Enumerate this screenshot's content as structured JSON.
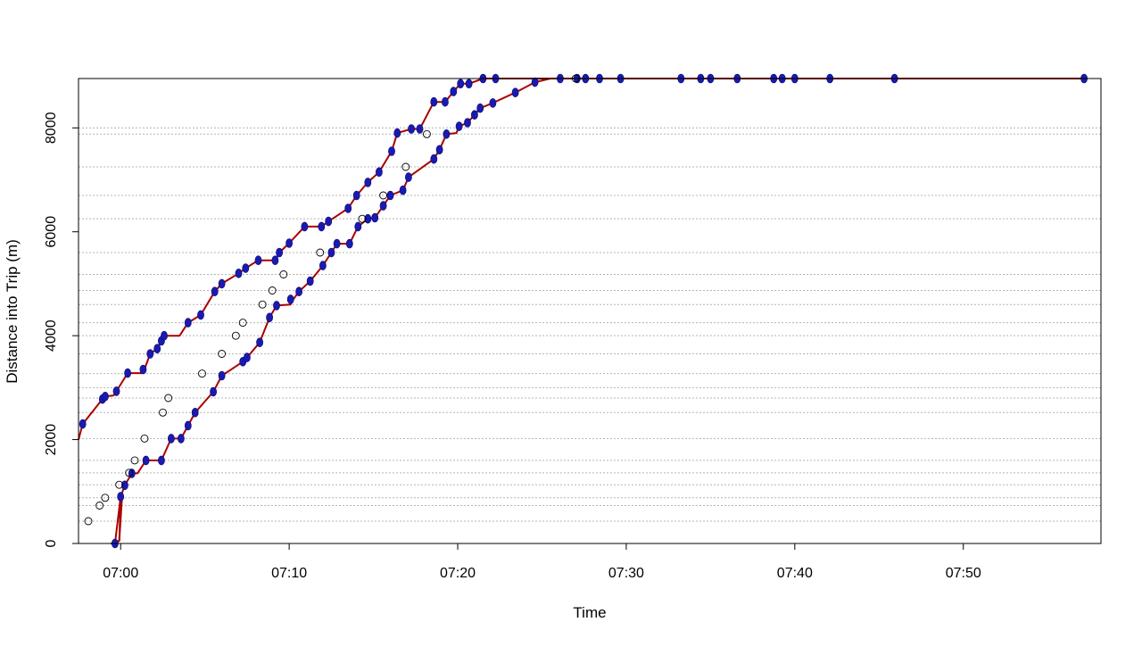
{
  "chart_data": {
    "type": "line",
    "title": "",
    "xlabel": "Time",
    "ylabel": "Distance into Trip (m)",
    "x_unit": "clock time (HH:MM)",
    "xlim": [
      "06:57:30",
      "07:58:10"
    ],
    "ylim": [
      0,
      8950
    ],
    "x_ticks": [
      "07:00",
      "07:10",
      "07:20",
      "07:30",
      "07:40",
      "07:50"
    ],
    "y_ticks": [
      0,
      2000,
      4000,
      6000,
      8000
    ],
    "stop_distances": [
      0,
      430,
      730,
      880,
      1130,
      1360,
      1600,
      2020,
      2520,
      2800,
      3000,
      3270,
      3650,
      4000,
      4250,
      4600,
      4870,
      5180,
      5600,
      6250,
      6700,
      7250,
      7880,
      8000,
      8950
    ],
    "grid": "horizontal dotted lines at stop distances",
    "colors": {
      "path": "#aa0000",
      "particles": "#1a1ab0",
      "observed": "#000000",
      "grid": "#b4b4b4"
    },
    "series": [
      {
        "kind": "path",
        "points": [
          [
            "06:57:30",
            2000
          ],
          [
            "06:57:45",
            2300
          ],
          [
            "06:58:55",
            2780
          ],
          [
            "06:59:05",
            2830
          ],
          [
            "06:59:35",
            2850
          ],
          [
            "06:59:45",
            2930
          ],
          [
            "07:00:25",
            3280
          ],
          [
            "07:01:20",
            3280
          ],
          [
            "07:01:45",
            3650
          ],
          [
            "07:02:10",
            3750
          ],
          [
            "07:02:35",
            4000
          ],
          [
            "07:03:30",
            4000
          ],
          [
            "07:04:00",
            4250
          ],
          [
            "07:04:45",
            4400
          ],
          [
            "07:05:35",
            4850
          ],
          [
            "07:06:00",
            5000
          ],
          [
            "07:07:00",
            5200
          ],
          [
            "07:07:25",
            5300
          ],
          [
            "07:08:10",
            5450
          ],
          [
            "07:09:10",
            5450
          ],
          [
            "07:09:25",
            5600
          ],
          [
            "07:10:00",
            5780
          ],
          [
            "07:10:55",
            6100
          ],
          [
            "07:11:55",
            6100
          ],
          [
            "07:12:20",
            6200
          ],
          [
            "07:13:30",
            6450
          ],
          [
            "07:14:00",
            6700
          ],
          [
            "07:14:40",
            6950
          ],
          [
            "07:15:20",
            7150
          ],
          [
            "07:16:05",
            7550
          ],
          [
            "07:16:25",
            7900
          ],
          [
            "07:17:15",
            7980
          ],
          [
            "07:17:45",
            7980
          ],
          [
            "07:18:35",
            8500
          ],
          [
            "07:19:15",
            8500
          ],
          [
            "07:19:45",
            8700
          ],
          [
            "07:20:10",
            8850
          ],
          [
            "07:20:40",
            8850
          ],
          [
            "07:21:30",
            8950
          ],
          [
            "07:57:10",
            8950
          ]
        ]
      },
      {
        "kind": "path",
        "points": [
          [
            "06:59:25",
            0
          ],
          [
            "06:59:40",
            0
          ],
          [
            "07:00:00",
            900
          ],
          [
            "07:00:15",
            1120
          ],
          [
            "07:00:40",
            1350
          ],
          [
            "07:01:00",
            1350
          ],
          [
            "07:01:30",
            1600
          ],
          [
            "07:02:25",
            1600
          ],
          [
            "07:03:00",
            2020
          ],
          [
            "07:03:35",
            2020
          ],
          [
            "07:04:00",
            2270
          ],
          [
            "07:04:25",
            2520
          ],
          [
            "07:05:30",
            2920
          ],
          [
            "07:06:00",
            3230
          ],
          [
            "07:07:15",
            3500
          ],
          [
            "07:07:30",
            3580
          ],
          [
            "07:08:15",
            3870
          ],
          [
            "07:08:50",
            4350
          ],
          [
            "07:09:15",
            4580
          ],
          [
            "07:10:05",
            4600
          ],
          [
            "07:10:15",
            4700
          ],
          [
            "07:10:35",
            4850
          ],
          [
            "07:11:15",
            5050
          ],
          [
            "07:12:00",
            5350
          ],
          [
            "07:12:30",
            5600
          ],
          [
            "07:12:50",
            5770
          ],
          [
            "07:13:35",
            5770
          ],
          [
            "07:14:05",
            6100
          ],
          [
            "07:14:40",
            6250
          ],
          [
            "07:15:05",
            6270
          ],
          [
            "07:15:35",
            6500
          ],
          [
            "07:16:00",
            6700
          ],
          [
            "07:16:45",
            6800
          ],
          [
            "07:17:05",
            7050
          ],
          [
            "07:18:35",
            7400
          ],
          [
            "07:18:55",
            7580
          ],
          [
            "07:19:20",
            7880
          ],
          [
            "07:19:55",
            7900
          ],
          [
            "07:20:05",
            8030
          ],
          [
            "07:20:35",
            8100
          ],
          [
            "07:21:00",
            8250
          ],
          [
            "07:21:20",
            8380
          ],
          [
            "07:22:05",
            8480
          ],
          [
            "07:23:25",
            8680
          ],
          [
            "07:24:35",
            8880
          ],
          [
            "07:25:30",
            8950
          ],
          [
            "07:57:15",
            8950
          ]
        ]
      },
      {
        "kind": "path",
        "points": [
          [
            "06:59:35",
            0
          ],
          [
            "06:59:55",
            50
          ],
          [
            "07:00:00",
            900
          ]
        ]
      },
      {
        "kind": "path",
        "points": [
          [
            "06:59:45",
            0
          ],
          [
            "06:59:55",
            60
          ],
          [
            "07:00:05",
            900
          ]
        ]
      },
      {
        "kind": "particles",
        "points": [
          [
            "06:57:45",
            2300
          ],
          [
            "06:58:55",
            2780
          ],
          [
            "06:59:05",
            2830
          ],
          [
            "06:59:45",
            2930
          ],
          [
            "07:00:25",
            3280
          ],
          [
            "07:01:20",
            3350
          ],
          [
            "07:01:45",
            3650
          ],
          [
            "07:02:10",
            3750
          ],
          [
            "07:02:25",
            3900
          ],
          [
            "07:02:35",
            4000
          ],
          [
            "07:04:00",
            4250
          ],
          [
            "07:04:45",
            4400
          ],
          [
            "07:05:35",
            4850
          ],
          [
            "07:06:00",
            5000
          ],
          [
            "07:07:00",
            5200
          ],
          [
            "07:07:25",
            5300
          ],
          [
            "07:08:10",
            5450
          ],
          [
            "07:09:10",
            5450
          ],
          [
            "07:09:25",
            5600
          ],
          [
            "07:10:00",
            5780
          ],
          [
            "07:10:55",
            6100
          ],
          [
            "07:11:55",
            6100
          ],
          [
            "07:12:20",
            6200
          ],
          [
            "07:13:30",
            6450
          ],
          [
            "07:14:00",
            6700
          ],
          [
            "07:14:40",
            6950
          ],
          [
            "07:15:20",
            7150
          ],
          [
            "07:16:05",
            7550
          ],
          [
            "07:16:25",
            7900
          ],
          [
            "07:17:15",
            7980
          ],
          [
            "07:17:45",
            7980
          ],
          [
            "07:18:35",
            8500
          ],
          [
            "07:19:15",
            8500
          ],
          [
            "07:19:45",
            8700
          ],
          [
            "07:20:10",
            8850
          ],
          [
            "07:20:40",
            8850
          ],
          [
            "07:21:30",
            8950
          ],
          [
            "07:22:15",
            8950
          ],
          [
            "06:59:40",
            0
          ],
          [
            "07:00:00",
            900
          ],
          [
            "07:00:15",
            1120
          ],
          [
            "07:00:40",
            1350
          ],
          [
            "07:01:30",
            1600
          ],
          [
            "07:02:25",
            1600
          ],
          [
            "07:03:00",
            2020
          ],
          [
            "07:03:35",
            2020
          ],
          [
            "07:04:00",
            2270
          ],
          [
            "07:04:25",
            2520
          ],
          [
            "07:05:30",
            2920
          ],
          [
            "07:06:00",
            3230
          ],
          [
            "07:07:15",
            3500
          ],
          [
            "07:07:30",
            3580
          ],
          [
            "07:08:15",
            3870
          ],
          [
            "07:08:50",
            4350
          ],
          [
            "07:09:15",
            4580
          ],
          [
            "07:10:05",
            4700
          ],
          [
            "07:10:35",
            4850
          ],
          [
            "07:11:15",
            5050
          ],
          [
            "07:12:00",
            5350
          ],
          [
            "07:12:30",
            5600
          ],
          [
            "07:12:50",
            5770
          ],
          [
            "07:13:35",
            5770
          ],
          [
            "07:14:05",
            6100
          ],
          [
            "07:14:40",
            6250
          ],
          [
            "07:15:05",
            6270
          ],
          [
            "07:15:35",
            6500
          ],
          [
            "07:16:00",
            6700
          ],
          [
            "07:16:45",
            6800
          ],
          [
            "07:17:05",
            7050
          ],
          [
            "07:18:35",
            7400
          ],
          [
            "07:18:55",
            7580
          ],
          [
            "07:19:20",
            7880
          ],
          [
            "07:20:05",
            8030
          ],
          [
            "07:20:35",
            8100
          ],
          [
            "07:21:00",
            8250
          ],
          [
            "07:21:20",
            8380
          ],
          [
            "07:22:05",
            8480
          ],
          [
            "07:23:25",
            8680
          ],
          [
            "07:24:35",
            8880
          ],
          [
            "07:26:05",
            8950
          ],
          [
            "07:27:05",
            8950
          ],
          [
            "07:27:35",
            8950
          ],
          [
            "07:28:25",
            8950
          ],
          [
            "07:29:40",
            8950
          ],
          [
            "07:33:15",
            8950
          ],
          [
            "07:34:25",
            8950
          ],
          [
            "07:35:00",
            8950
          ],
          [
            "07:36:35",
            8950
          ],
          [
            "07:38:45",
            8950
          ],
          [
            "07:39:15",
            8950
          ],
          [
            "07:40:00",
            8950
          ],
          [
            "07:42:05",
            8950
          ],
          [
            "07:45:55",
            8950
          ],
          [
            "07:57:10",
            8950
          ]
        ]
      },
      {
        "kind": "observed",
        "points": [
          [
            "06:58:05",
            430
          ],
          [
            "06:58:45",
            730
          ],
          [
            "06:59:05",
            880
          ],
          [
            "06:59:55",
            1130
          ],
          [
            "07:00:30",
            1360
          ],
          [
            "07:00:50",
            1600
          ],
          [
            "07:01:25",
            2020
          ],
          [
            "07:02:30",
            2520
          ],
          [
            "07:02:50",
            2800
          ],
          [
            "07:04:50",
            3270
          ],
          [
            "07:06:00",
            3650
          ],
          [
            "07:06:50",
            4000
          ],
          [
            "07:07:15",
            4250
          ],
          [
            "07:08:25",
            4600
          ],
          [
            "07:09:00",
            4870
          ],
          [
            "07:09:40",
            5180
          ],
          [
            "07:11:50",
            5600
          ],
          [
            "07:14:20",
            6250
          ],
          [
            "07:15:35",
            6700
          ],
          [
            "07:16:55",
            7250
          ],
          [
            "07:18:10",
            7880
          ],
          [
            "07:27:00",
            8950
          ]
        ]
      }
    ]
  }
}
